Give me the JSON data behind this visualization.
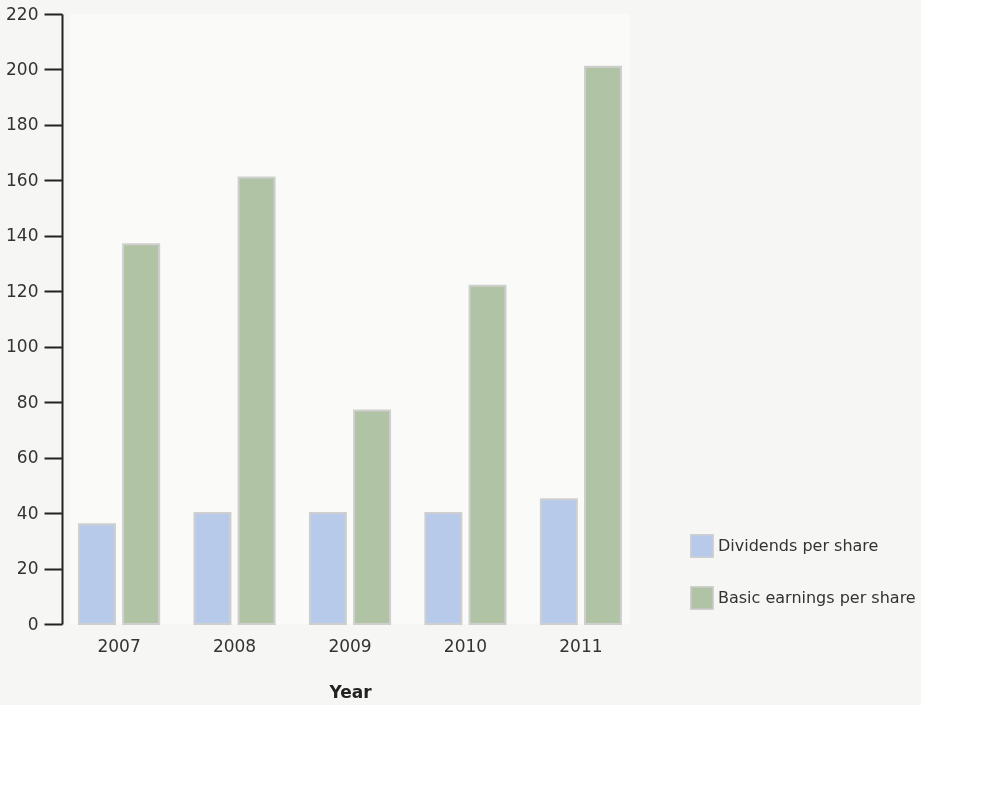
{
  "chart_data": {
    "type": "bar",
    "xlabel": "Year",
    "categories": [
      "2007",
      "2008",
      "2009",
      "2010",
      "2011"
    ],
    "series": [
      {
        "name": "Dividends per share",
        "color": "#b8caea",
        "values": [
          36,
          40,
          40,
          40,
          45
        ]
      },
      {
        "name": "Basic earnings per share",
        "color": "#b0c3a5",
        "values": [
          137,
          161,
          77,
          122,
          201
        ]
      }
    ],
    "ylim": [
      0,
      220
    ],
    "yticks": [
      0,
      20,
      40,
      60,
      80,
      100,
      120,
      140,
      160,
      180,
      200,
      220
    ],
    "grid": false,
    "legend": "bottom right"
  }
}
